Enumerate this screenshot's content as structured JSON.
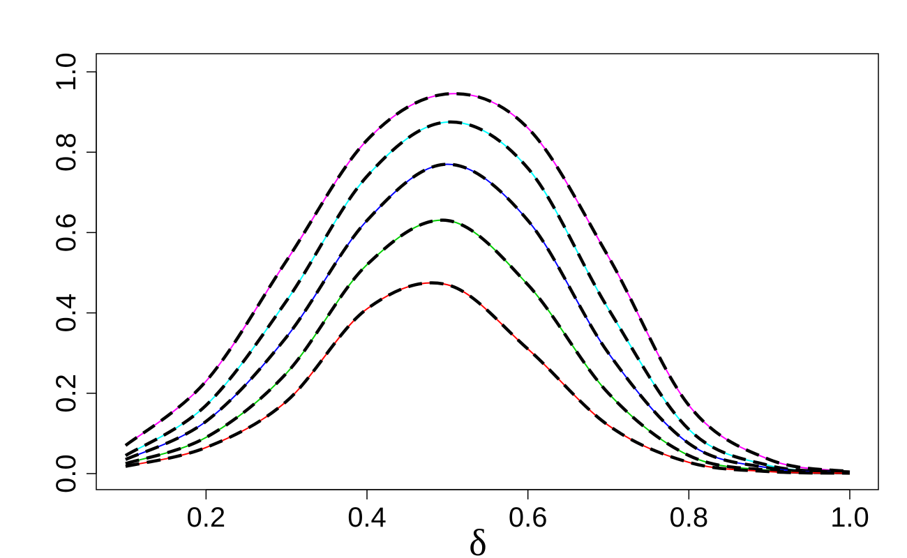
{
  "chart_data": {
    "type": "line",
    "title": "",
    "xlabel": "δ",
    "ylabel": "",
    "xlim": [
      0.1,
      1.0
    ],
    "ylim": [
      0.0,
      1.0
    ],
    "x_ticks": [
      "0.2",
      "0.4",
      "0.6",
      "0.8",
      "1.0"
    ],
    "y_ticks": [
      "0.0",
      "0.2",
      "0.4",
      "0.6",
      "0.8",
      "1.0"
    ],
    "grid": false,
    "legend": "none",
    "x": [
      0.1,
      0.2,
      0.3,
      0.4,
      0.5,
      0.6,
      0.7,
      0.8,
      0.9,
      1.0
    ],
    "series": [
      {
        "color": "#ff00ff",
        "style": "solid",
        "values": [
          0.07,
          0.23,
          0.53,
          0.83,
          0.945,
          0.86,
          0.54,
          0.17,
          0.035,
          0.005
        ]
      },
      {
        "color": "#000000",
        "style": "dashed",
        "values": [
          0.07,
          0.23,
          0.53,
          0.83,
          0.945,
          0.86,
          0.54,
          0.17,
          0.035,
          0.005
        ]
      },
      {
        "color": "#00ffff",
        "style": "solid",
        "values": [
          0.045,
          0.17,
          0.43,
          0.74,
          0.875,
          0.76,
          0.41,
          0.11,
          0.02,
          0.004
        ]
      },
      {
        "color": "#000000",
        "style": "dashed",
        "values": [
          0.045,
          0.17,
          0.43,
          0.74,
          0.875,
          0.76,
          0.41,
          0.11,
          0.02,
          0.004
        ]
      },
      {
        "color": "#0000ff",
        "style": "solid",
        "values": [
          0.035,
          0.13,
          0.34,
          0.63,
          0.77,
          0.63,
          0.3,
          0.075,
          0.014,
          0.003
        ]
      },
      {
        "color": "#000000",
        "style": "dashed",
        "values": [
          0.035,
          0.13,
          0.34,
          0.63,
          0.77,
          0.63,
          0.3,
          0.075,
          0.014,
          0.003
        ]
      },
      {
        "color": "#00cc00",
        "style": "solid",
        "values": [
          0.025,
          0.09,
          0.25,
          0.52,
          0.63,
          0.47,
          0.2,
          0.045,
          0.008,
          0.002
        ]
      },
      {
        "color": "#000000",
        "style": "dashed",
        "values": [
          0.025,
          0.09,
          0.25,
          0.52,
          0.63,
          0.47,
          0.2,
          0.045,
          0.008,
          0.002
        ]
      },
      {
        "color": "#ff0000",
        "style": "solid",
        "values": [
          0.018,
          0.065,
          0.18,
          0.41,
          0.47,
          0.31,
          0.12,
          0.028,
          0.005,
          0.001
        ]
      },
      {
        "color": "#000000",
        "style": "dashed",
        "values": [
          0.018,
          0.065,
          0.18,
          0.41,
          0.47,
          0.31,
          0.12,
          0.028,
          0.005,
          0.001
        ]
      }
    ]
  }
}
